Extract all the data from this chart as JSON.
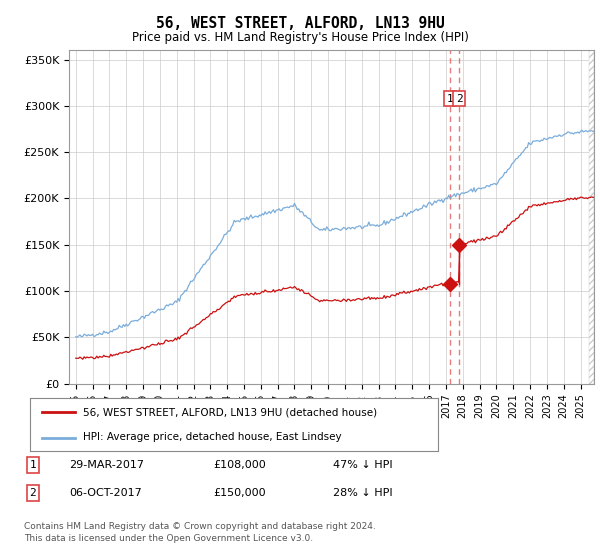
{
  "title": "56, WEST STREET, ALFORD, LN13 9HU",
  "subtitle": "Price paid vs. HM Land Registry's House Price Index (HPI)",
  "legend_line1": "56, WEST STREET, ALFORD, LN13 9HU (detached house)",
  "legend_line2": "HPI: Average price, detached house, East Lindsey",
  "footnote": "Contains HM Land Registry data © Crown copyright and database right 2024.\nThis data is licensed under the Open Government Licence v3.0.",
  "transaction1_date": "29-MAR-2017",
  "transaction1_price": "£108,000",
  "transaction1_hpi": "47% ↓ HPI",
  "transaction2_date": "06-OCT-2017",
  "transaction2_price": "£150,000",
  "transaction2_hpi": "28% ↓ HPI",
  "hpi_color": "#7aaddb",
  "price_color": "#cc1111",
  "dashed_line_color": "#dd4444",
  "background_color": "#ffffff",
  "plot_bg_color": "#ffffff",
  "ylim": [
    0,
    360000
  ],
  "yticks": [
    0,
    50000,
    100000,
    150000,
    200000,
    250000,
    300000,
    350000
  ],
  "ytick_labels": [
    "£0",
    "£50K",
    "£100K",
    "£150K",
    "£200K",
    "£250K",
    "£300K",
    "£350K"
  ],
  "transaction1_x": 2017.23,
  "transaction1_y": 108000,
  "transaction2_x": 2017.78,
  "transaction2_y": 150000,
  "xlim_left": 1994.6,
  "xlim_right": 2025.8
}
